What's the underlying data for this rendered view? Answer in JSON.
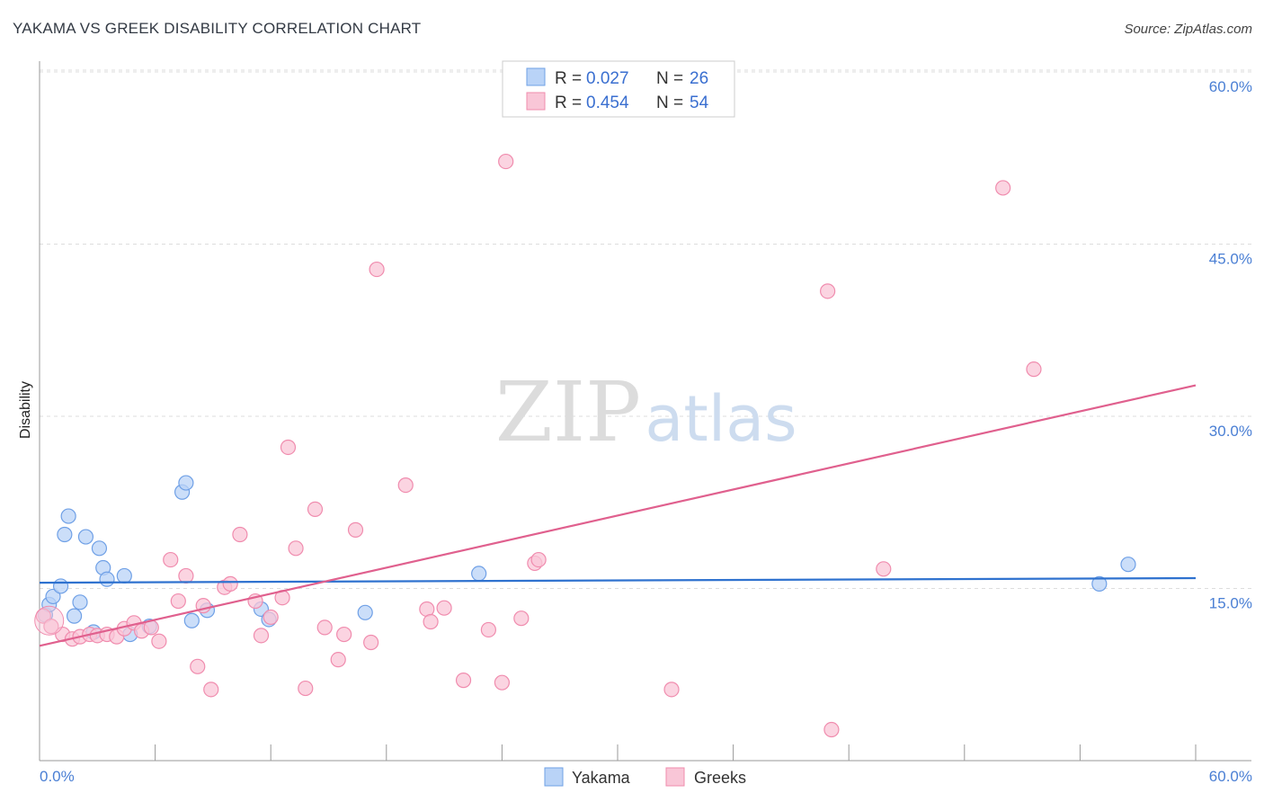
{
  "title": "YAKAMA VS GREEK DISABILITY CORRELATION CHART",
  "source": "Source: ZipAtlas.com",
  "watermark": {
    "zip": "ZIP",
    "atlas": "atlas"
  },
  "chart_data": {
    "type": "scatter",
    "title": "YAKAMA VS GREEK DISABILITY CORRELATION CHART",
    "xlabel": "",
    "ylabel": "Disability",
    "xlim": [
      0,
      60
    ],
    "ylim": [
      0,
      60
    ],
    "x_tick_labels": {
      "left": "0.0%",
      "right": "60.0%"
    },
    "y_ticks": [
      15,
      30,
      45,
      60
    ],
    "y_tick_labels": [
      "15.0%",
      "30.0%",
      "45.0%",
      "60.0%"
    ],
    "grid": true,
    "legend_top": [
      {
        "r_label": "R = ",
        "r_value": "0.027",
        "n_label": "N = ",
        "n_value": "26"
      },
      {
        "r_label": "R = ",
        "r_value": "0.454",
        "n_label": "N = ",
        "n_value": "54"
      }
    ],
    "series": [
      {
        "name": "Yakama",
        "color": "#6fa0e6",
        "fill": "#b9d3f7",
        "line_color": "#2f72cf",
        "trend": [
          [
            0,
            15.5
          ],
          [
            60,
            15.9
          ]
        ],
        "points": [
          [
            0.3,
            12.7
          ],
          [
            0.5,
            13.6
          ],
          [
            0.7,
            14.3
          ],
          [
            1.1,
            15.2
          ],
          [
            1.3,
            19.7
          ],
          [
            1.5,
            21.3
          ],
          [
            1.8,
            12.6
          ],
          [
            2.1,
            13.8
          ],
          [
            2.4,
            19.5
          ],
          [
            2.8,
            11.2
          ],
          [
            3.1,
            18.5
          ],
          [
            3.3,
            16.8
          ],
          [
            3.5,
            15.8
          ],
          [
            4.4,
            16.1
          ],
          [
            4.7,
            11.0
          ],
          [
            5.7,
            11.7
          ],
          [
            7.4,
            23.4
          ],
          [
            7.6,
            24.2
          ],
          [
            7.9,
            12.2
          ],
          [
            8.7,
            13.1
          ],
          [
            11.5,
            13.2
          ],
          [
            11.9,
            12.3
          ],
          [
            16.9,
            12.9
          ],
          [
            22.8,
            16.3
          ],
          [
            55.0,
            15.4
          ],
          [
            56.5,
            17.1
          ]
        ]
      },
      {
        "name": "Greeks",
        "color": "#f08cae",
        "fill": "#f9c6d7",
        "line_color": "#e0608e",
        "trend": [
          [
            0,
            10.0
          ],
          [
            60,
            32.7
          ]
        ],
        "points": [
          [
            0.2,
            12.6
          ],
          [
            0.6,
            11.7
          ],
          [
            1.2,
            11.0
          ],
          [
            1.7,
            10.6
          ],
          [
            2.1,
            10.8
          ],
          [
            2.6,
            11.0
          ],
          [
            3.0,
            10.9
          ],
          [
            3.5,
            11.0
          ],
          [
            4.0,
            10.8
          ],
          [
            4.4,
            11.5
          ],
          [
            4.9,
            12.0
          ],
          [
            5.3,
            11.3
          ],
          [
            5.8,
            11.6
          ],
          [
            6.2,
            10.4
          ],
          [
            6.8,
            17.5
          ],
          [
            7.2,
            13.9
          ],
          [
            7.6,
            16.1
          ],
          [
            8.2,
            8.2
          ],
          [
            8.5,
            13.5
          ],
          [
            8.9,
            6.2
          ],
          [
            9.6,
            15.1
          ],
          [
            9.9,
            15.4
          ],
          [
            10.4,
            19.7
          ],
          [
            11.2,
            13.9
          ],
          [
            11.5,
            10.9
          ],
          [
            12.0,
            12.5
          ],
          [
            12.6,
            14.2
          ],
          [
            12.9,
            27.3
          ],
          [
            13.3,
            18.5
          ],
          [
            13.8,
            6.3
          ],
          [
            14.3,
            21.9
          ],
          [
            14.8,
            11.6
          ],
          [
            15.5,
            8.8
          ],
          [
            15.8,
            11.0
          ],
          [
            16.4,
            20.1
          ],
          [
            17.2,
            10.3
          ],
          [
            17.5,
            42.8
          ],
          [
            19.0,
            24.0
          ],
          [
            20.1,
            13.2
          ],
          [
            20.3,
            12.1
          ],
          [
            21.0,
            13.3
          ],
          [
            22.0,
            7.0
          ],
          [
            23.3,
            11.4
          ],
          [
            24.0,
            6.8
          ],
          [
            24.2,
            52.2
          ],
          [
            25.0,
            12.4
          ],
          [
            25.7,
            17.2
          ],
          [
            25.9,
            17.5
          ],
          [
            32.8,
            6.2
          ],
          [
            40.9,
            40.9
          ],
          [
            41.1,
            2.7
          ],
          [
            43.8,
            16.7
          ],
          [
            50.0,
            49.9
          ],
          [
            51.6,
            34.1
          ]
        ]
      }
    ]
  }
}
